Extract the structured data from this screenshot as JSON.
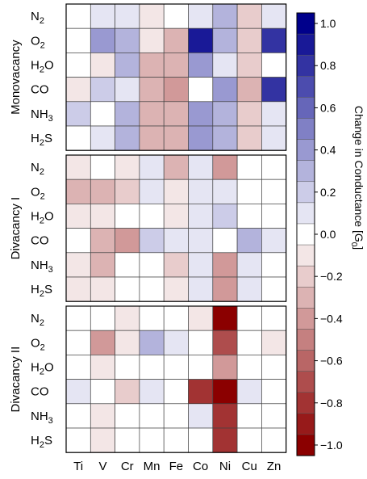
{
  "chart_data": {
    "type": "heatmap",
    "columns": [
      "Ti",
      "V",
      "Cr",
      "Mn",
      "Fe",
      "Co",
      "Ni",
      "Cu",
      "Zn"
    ],
    "rows": [
      {
        "label": "N",
        "sub": "2"
      },
      {
        "label": "O",
        "sub": "2"
      },
      {
        "label": "H",
        "sub": "2",
        "post": "O"
      },
      {
        "label": "CO",
        "sub": "",
        "post": ""
      },
      {
        "label": "NH",
        "sub": "3"
      },
      {
        "label": "H",
        "sub": "2",
        "post": "S"
      }
    ],
    "groups": [
      {
        "name": "Monovacancy",
        "values": [
          [
            0.0,
            0.15,
            0.1,
            -0.1,
            0.0,
            0.15,
            0.25,
            -0.25,
            0.1
          ],
          [
            0.0,
            0.45,
            0.3,
            -0.1,
            -0.3,
            0.9,
            0.3,
            -0.2,
            0.75
          ],
          [
            0.0,
            -0.1,
            0.25,
            -0.35,
            -0.35,
            0.35,
            0.15,
            -0.25,
            0.0
          ],
          [
            -0.1,
            0.2,
            0.15,
            -0.3,
            -0.4,
            0.0,
            0.4,
            -0.3,
            0.8
          ],
          [
            0.2,
            0.0,
            0.25,
            -0.3,
            -0.3,
            0.4,
            0.3,
            -0.2,
            0.1
          ],
          [
            0.0,
            0.1,
            0.3,
            -0.3,
            -0.3,
            0.35,
            0.3,
            -0.2,
            0.1
          ]
        ]
      },
      {
        "name": "Divacancy I",
        "values": [
          [
            -0.1,
            0.0,
            -0.05,
            0.05,
            -0.35,
            0.1,
            -0.4,
            0.0,
            0.0
          ],
          [
            -0.35,
            -0.3,
            -0.2,
            0.15,
            -0.1,
            0.1,
            0.15,
            0.0,
            0.0
          ],
          [
            -0.1,
            -0.1,
            0.0,
            0.0,
            -0.1,
            0.1,
            0.2,
            0.0,
            0.0
          ],
          [
            0.0,
            -0.3,
            -0.4,
            0.2,
            0.15,
            0.1,
            0.0,
            0.25,
            0.1
          ],
          [
            -0.1,
            -0.35,
            0.0,
            0.0,
            -0.2,
            0.1,
            -0.4,
            0.1,
            0.0
          ],
          [
            -0.05,
            -0.1,
            0.0,
            0.0,
            -0.1,
            0.1,
            -0.4,
            0.05,
            0.0
          ]
        ]
      },
      {
        "name": "Divacancy II",
        "values": [
          [
            0.0,
            0.0,
            -0.1,
            0.0,
            0.0,
            -0.1,
            -1.0,
            0.0,
            0.0
          ],
          [
            0.0,
            -0.4,
            -0.15,
            0.3,
            0.1,
            0.0,
            -0.65,
            0.0,
            -0.1
          ],
          [
            0.0,
            -0.1,
            0.0,
            0.0,
            0.0,
            0.0,
            -0.4,
            0.0,
            0.0
          ],
          [
            0.1,
            0.0,
            -0.25,
            0.1,
            0.0,
            -0.8,
            -1.0,
            0.1,
            0.0
          ],
          [
            0.0,
            -0.1,
            0.0,
            0.0,
            0.0,
            0.1,
            -0.85,
            0.0,
            0.0
          ],
          [
            0.0,
            -0.1,
            0.0,
            0.0,
            0.0,
            0.0,
            -0.85,
            0.0,
            0.0
          ]
        ]
      }
    ],
    "colorbar": {
      "label": "Change in Conductance [G",
      "label_sub": "0",
      "label_end": "]",
      "ticks": [
        "1.0",
        "0.8",
        "0.6",
        "0.4",
        "0.2",
        "0.0",
        "−0.2",
        "−0.4",
        "−0.6",
        "−0.8",
        "−1.0"
      ],
      "range": [
        -1.0,
        1.0
      ],
      "steps": 21,
      "max_color": "#00008b",
      "zero_color": "#ffffff",
      "min_color": "#8b0000"
    }
  }
}
